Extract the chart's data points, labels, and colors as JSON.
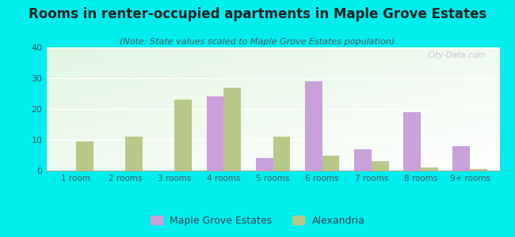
{
  "title": "Rooms in renter-occupied apartments in Maple Grove Estates",
  "subtitle": "(Note: State values scaled to Maple Grove Estates population)",
  "categories": [
    "1 room",
    "2 rooms",
    "3 rooms",
    "4 rooms",
    "5 rooms",
    "6 rooms",
    "7 rooms",
    "8 rooms",
    "9+ rooms"
  ],
  "maple_grove": [
    0,
    0,
    0,
    24,
    4,
    29,
    7,
    19,
    8
  ],
  "alexandria": [
    9.5,
    11,
    23,
    27,
    11,
    5,
    3,
    1,
    0.5
  ],
  "maple_grove_color": "#c9a0dc",
  "alexandria_color": "#b8c888",
  "background_color": "#00eeee",
  "watermark": "City-Data.com",
  "ylim": [
    0,
    40
  ],
  "yticks": [
    0,
    10,
    20,
    30,
    40
  ],
  "bar_width": 0.35,
  "legend_maple": "Maple Grove Estates",
  "legend_alex": "Alexandria",
  "title_fontsize": 12,
  "subtitle_fontsize": 8
}
